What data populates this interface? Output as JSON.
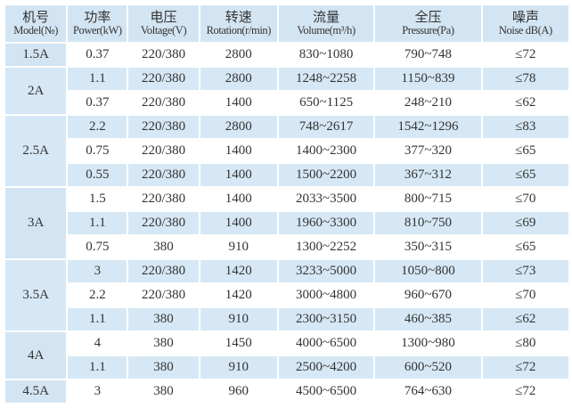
{
  "headers": [
    {
      "zh": "机号",
      "en": "Model(№)"
    },
    {
      "zh": "功率",
      "en": "Power(kW)"
    },
    {
      "zh": "电压",
      "en": "Voltage(V)"
    },
    {
      "zh": "转速",
      "en": "Rotation(r/min)"
    },
    {
      "zh": "流量",
      "en": "Volume(m³/h)"
    },
    {
      "zh": "全压",
      "en": "Pressure(Pa)"
    },
    {
      "zh": "噪声",
      "en": "Noise dB(A)"
    }
  ],
  "groups": [
    {
      "model": "1.5A",
      "rows": [
        [
          "0.37",
          "220/380",
          "2800",
          "830~1080",
          "790~748",
          "≤72"
        ]
      ]
    },
    {
      "model": "2A",
      "rows": [
        [
          "1.1",
          "220/380",
          "2800",
          "1248~2258",
          "1150~839",
          "≤78"
        ],
        [
          "0.37",
          "220/380",
          "1400",
          "650~1125",
          "248~210",
          "≤62"
        ]
      ]
    },
    {
      "model": "2.5A",
      "rows": [
        [
          "2.2",
          "220/380",
          "2800",
          "748~2617",
          "1542~1296",
          "≤83"
        ],
        [
          "0.75",
          "220/380",
          "1400",
          "1400~2300",
          "377~320",
          "≤65"
        ],
        [
          "0.55",
          "220/380",
          "1400",
          "1500~2200",
          "367~312",
          "≤65"
        ]
      ]
    },
    {
      "model": "3A",
      "rows": [
        [
          "1.5",
          "220/380",
          "1400",
          "2033~3500",
          "800~715",
          "≤70"
        ],
        [
          "1.1",
          "220/380",
          "1400",
          "1960~3300",
          "810~750",
          "≤69"
        ],
        [
          "0.75",
          "380",
          "910",
          "1300~2252",
          "350~315",
          "≤65"
        ]
      ]
    },
    {
      "model": "3.5A",
      "rows": [
        [
          "3",
          "220/380",
          "1420",
          "3233~5000",
          "1050~800",
          "≤73"
        ],
        [
          "2.2",
          "220/380",
          "1420",
          "3000~4800",
          "960~670",
          "≤70"
        ],
        [
          "1.1",
          "380",
          "910",
          "2300~3150",
          "460~385",
          "≤62"
        ]
      ]
    },
    {
      "model": "4A",
      "rows": [
        [
          "4",
          "380",
          "1450",
          "4000~6500",
          "1300~980",
          "≤80"
        ],
        [
          "1.1",
          "380",
          "910",
          "2500~4200",
          "600~520",
          "≤72"
        ]
      ]
    },
    {
      "model": "4.5A",
      "rows": [
        [
          "3",
          "380",
          "960",
          "4500~6500",
          "764~630",
          "≤72"
        ]
      ]
    }
  ]
}
